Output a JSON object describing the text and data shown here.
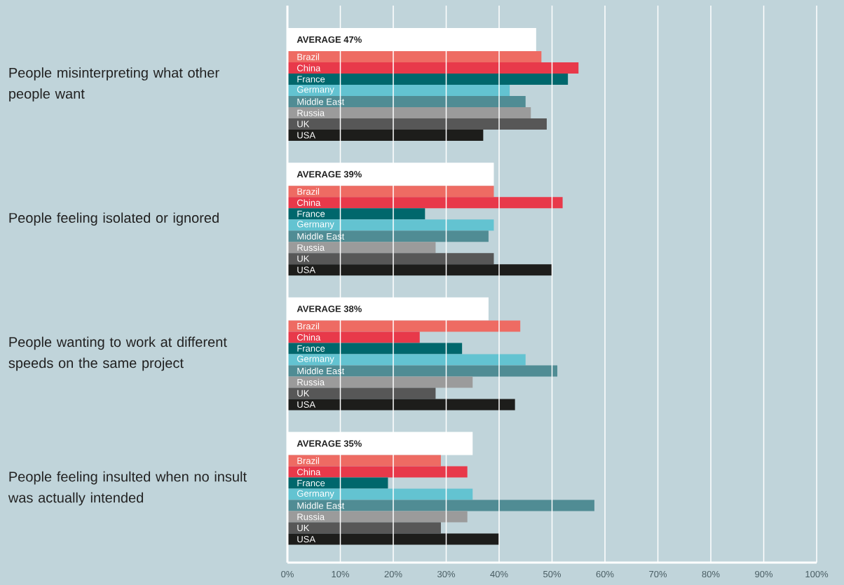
{
  "chart_data": {
    "type": "bar",
    "orientation": "horizontal",
    "categories": [
      "People misinterpreting what other people want",
      "People feeling isolated or ignored",
      "People wanting to work at different speeds on the same project",
      "People feeling insulted when no insult was actually intended"
    ],
    "series": [
      {
        "color": "#ffffff",
        "values": [
          47,
          39,
          38,
          35
        ],
        "value_labels": [
          "AVERAGE 47%",
          "AVERAGE 39%",
          "AVERAGE 38%",
          "AVERAGE 35%"
        ]
      },
      {
        "name": "Brazil",
        "color": "#ee6b63",
        "values": [
          48,
          39,
          44,
          29
        ]
      },
      {
        "name": "China",
        "color": "#e8394a",
        "values": [
          55,
          52,
          25,
          34
        ]
      },
      {
        "name": "France",
        "color": "#00676c",
        "values": [
          53,
          26,
          33,
          19
        ]
      },
      {
        "name": "Germany",
        "color": "#63c3d1",
        "values": [
          42,
          39,
          45,
          35
        ]
      },
      {
        "name": "Middle East",
        "color": "#508c94",
        "values": [
          45,
          38,
          51,
          58
        ]
      },
      {
        "name": "Russia",
        "color": "#9b9b9b",
        "values": [
          46,
          28,
          35,
          34
        ]
      },
      {
        "name": "UK",
        "color": "#575757",
        "values": [
          49,
          39,
          28,
          29
        ]
      },
      {
        "name": "USA",
        "color": "#1d1d1b",
        "values": [
          37,
          50,
          43,
          40
        ]
      }
    ],
    "xlim": [
      0,
      100
    ],
    "xticks": [
      {
        "value": 0,
        "label": "0%"
      },
      {
        "value": 10,
        "label": "10%"
      },
      {
        "value": 20,
        "label": "20%"
      },
      {
        "value": 30,
        "label": "30%"
      },
      {
        "value": 40,
        "label": "40%"
      },
      {
        "value": 50,
        "label": "50%"
      },
      {
        "value": 60,
        "label": "60%"
      },
      {
        "value": 70,
        "label": "70%"
      },
      {
        "value": 80,
        "label": "80%"
      },
      {
        "value": 90,
        "label": "90%"
      },
      {
        "value": 100,
        "label": "100%"
      }
    ],
    "grid": "x"
  }
}
